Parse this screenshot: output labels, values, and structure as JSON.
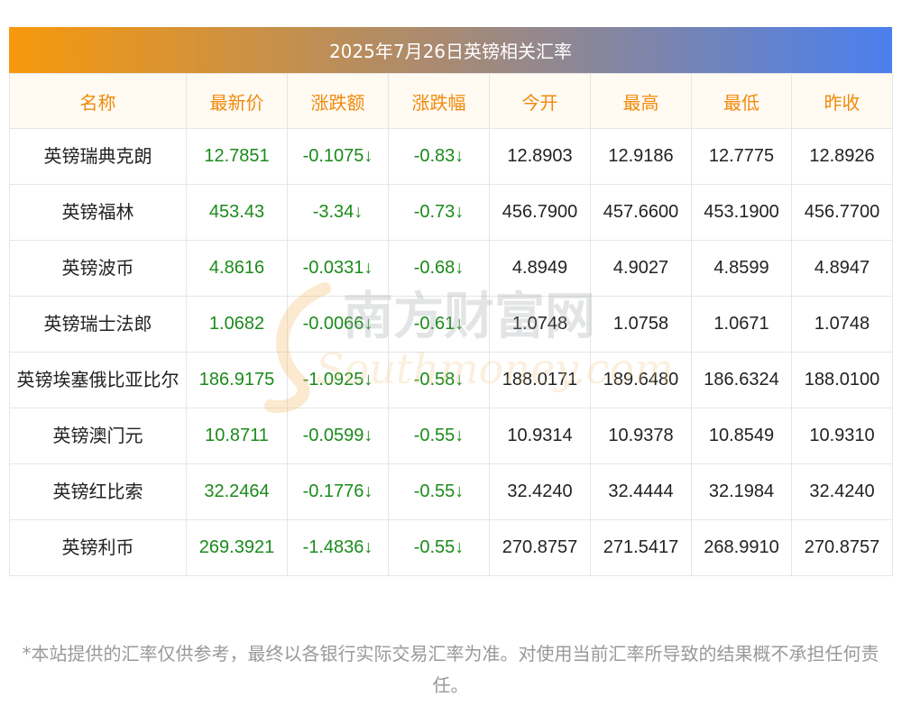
{
  "title": "2025年7月26日英镑相关汇率",
  "headers": [
    "名称",
    "最新价",
    "涨跌额",
    "涨跌幅",
    "今开",
    "最高",
    "最低",
    "昨收"
  ],
  "rows": [
    {
      "name": "英镑瑞典克朗",
      "latest": "12.7851",
      "change": "-0.1075↓",
      "pct": "-0.83↓",
      "open": "12.8903",
      "high": "12.9186",
      "low": "12.7775",
      "prev": "12.8926"
    },
    {
      "name": "英镑福林",
      "latest": "453.43",
      "change": "-3.34↓",
      "pct": "-0.73↓",
      "open": "456.7900",
      "high": "457.6600",
      "low": "453.1900",
      "prev": "456.7700"
    },
    {
      "name": "英镑波币",
      "latest": "4.8616",
      "change": "-0.0331↓",
      "pct": "-0.68↓",
      "open": "4.8949",
      "high": "4.9027",
      "low": "4.8599",
      "prev": "4.8947"
    },
    {
      "name": "英镑瑞士法郎",
      "latest": "1.0682",
      "change": "-0.0066↓",
      "pct": "-0.61↓",
      "open": "1.0748",
      "high": "1.0758",
      "low": "1.0671",
      "prev": "1.0748"
    },
    {
      "name": "英镑埃塞俄比亚比尔",
      "latest": "186.9175",
      "change": "-1.0925↓",
      "pct": "-0.58↓",
      "open": "188.0171",
      "high": "189.6480",
      "low": "186.6324",
      "prev": "188.0100"
    },
    {
      "name": "英镑澳门元",
      "latest": "10.8711",
      "change": "-0.0599↓",
      "pct": "-0.55↓",
      "open": "10.9314",
      "high": "10.9378",
      "low": "10.8549",
      "prev": "10.9310"
    },
    {
      "name": "英镑红比索",
      "latest": "32.2464",
      "change": "-0.1776↓",
      "pct": "-0.55↓",
      "open": "32.4240",
      "high": "32.4444",
      "low": "32.1984",
      "prev": "32.4240"
    },
    {
      "name": "英镑利币",
      "latest": "269.3921",
      "change": "-1.4836↓",
      "pct": "-0.55↓",
      "open": "270.8757",
      "high": "271.5417",
      "low": "268.9910",
      "prev": "270.8757"
    }
  ],
  "watermark": {
    "cn": "南方财富网",
    "en": "Southmoney.com"
  },
  "disclaimer": "*本站提供的汇率仅供参考，最终以各银行实际交易汇率为准。对使用当前汇率所导致的结果概不承担任何责任。",
  "colors": {
    "header_text": "#f08a0c",
    "value_green": "#1b8a1b",
    "gradient_start": "#f7990b",
    "gradient_end": "#4a7fee"
  }
}
